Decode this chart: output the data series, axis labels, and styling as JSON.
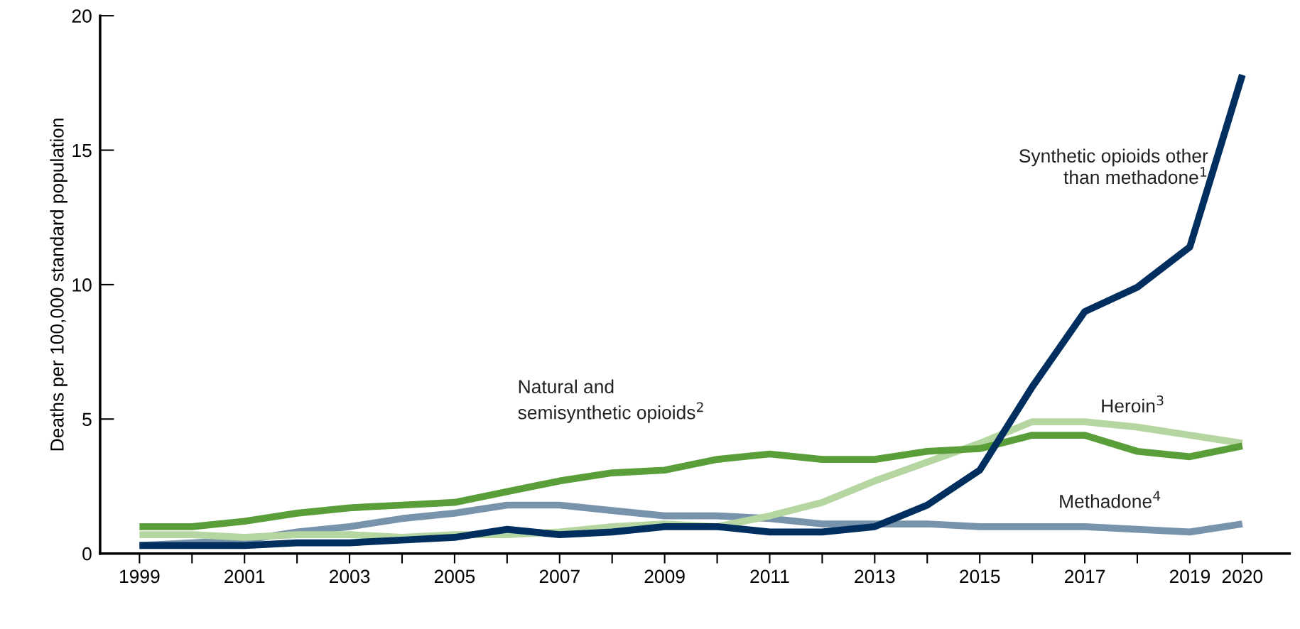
{
  "chart_data": {
    "type": "line",
    "ylabel": "Deaths per 100,000 standard population",
    "x": [
      1999,
      2000,
      2001,
      2002,
      2003,
      2004,
      2005,
      2006,
      2007,
      2008,
      2009,
      2010,
      2011,
      2012,
      2013,
      2014,
      2015,
      2016,
      2017,
      2018,
      2019,
      2020
    ],
    "series": [
      {
        "name": "Methadone$^{4}$",
        "color": "#7894ad",
        "values": [
          0.3,
          0.4,
          0.5,
          0.8,
          1.0,
          1.3,
          1.5,
          1.8,
          1.8,
          1.6,
          1.4,
          1.4,
          1.3,
          1.1,
          1.1,
          1.1,
          1.0,
          1.0,
          1.0,
          0.9,
          0.8,
          1.1
        ]
      },
      {
        "name": "Heroin$^{3}$",
        "color": "#b5d6a0",
        "values": [
          0.7,
          0.7,
          0.6,
          0.7,
          0.7,
          0.6,
          0.7,
          0.7,
          0.8,
          1.0,
          1.1,
          1.0,
          1.4,
          1.9,
          2.7,
          3.4,
          4.1,
          4.9,
          4.9,
          4.7,
          4.4,
          4.1
        ]
      },
      {
        "name": "Natural and\nsemisynthetic opioids$^{2}$",
        "color": "#5a9e3a",
        "values": [
          1.0,
          1.0,
          1.2,
          1.5,
          1.7,
          1.8,
          1.9,
          2.3,
          2.7,
          3.0,
          3.1,
          3.5,
          3.7,
          3.5,
          3.5,
          3.8,
          3.9,
          4.4,
          4.4,
          3.8,
          3.6,
          4.0
        ]
      },
      {
        "name": "Synthetic opioids other\nthan methadone$^{1}$",
        "color": "#002f5f",
        "values": [
          0.3,
          0.3,
          0.3,
          0.4,
          0.4,
          0.5,
          0.6,
          0.9,
          0.7,
          0.8,
          1.0,
          1.0,
          0.8,
          0.8,
          1.0,
          1.8,
          3.1,
          6.2,
          9.0,
          9.9,
          11.4,
          17.8
        ]
      }
    ],
    "xlim": [
      1998.25,
      2020.9
    ],
    "ylim": [
      0,
      20
    ],
    "yticks": [
      0,
      5,
      10,
      15,
      20
    ],
    "xticks": [
      1999,
      {
        "value": 2000,
        "label": null
      },
      2001,
      {
        "value": 2002,
        "label": null
      },
      2003,
      {
        "value": 2004,
        "label": null
      },
      2005,
      {
        "value": 2006,
        "label": null
      },
      2007,
      {
        "value": 2008,
        "label": null
      },
      2009,
      {
        "value": 2010,
        "label": null
      },
      2011,
      {
        "value": 2012,
        "label": null
      },
      2013,
      {
        "value": 2014,
        "label": null
      },
      2015,
      {
        "value": 2016,
        "label": null
      },
      2017,
      {
        "value": 2018,
        "label": null
      },
      2019,
      2020
    ],
    "grid": false,
    "legend": false,
    "line_style": "solid",
    "marker": "none"
  }
}
